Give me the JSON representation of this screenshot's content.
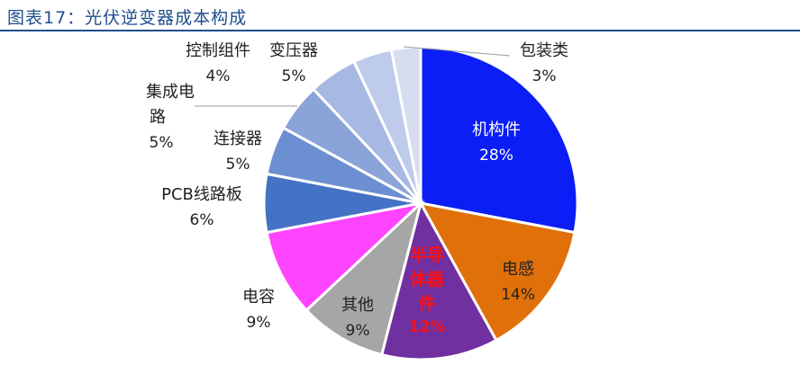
{
  "title": "图表17：光伏逆变器成本构成",
  "chart_data": {
    "type": "pie",
    "title": "图表17：光伏逆变器成本构成",
    "start_angle_deg": 0,
    "direction": "clockwise",
    "slices": [
      {
        "name": "机构件",
        "value": 28,
        "pct_label": "28%",
        "color": "#0a1ef5",
        "label_color": "#ffffff"
      },
      {
        "name": "电感",
        "value": 14,
        "pct_label": "14%",
        "color": "#e0700a",
        "label_color": "#222222"
      },
      {
        "name": "半导体器件",
        "value": 12,
        "pct_label": "12%",
        "color": "#7030a0",
        "label_color": "#ff1010"
      },
      {
        "name": "其他",
        "value": 9,
        "pct_label": "9%",
        "color": "#a6a6a6",
        "label_color": "#222222"
      },
      {
        "name": "电容",
        "value": 9,
        "pct_label": "9%",
        "color": "#ff44ff",
        "label_color": "#222222"
      },
      {
        "name": "PCB线路板",
        "value": 6,
        "pct_label": "6%",
        "color": "#4472c4",
        "label_color": "#222222"
      },
      {
        "name": "连接器",
        "value": 5,
        "pct_label": "5%",
        "color": "#6b8fd0",
        "label_color": "#222222"
      },
      {
        "name": "集成电路",
        "value": 5,
        "pct_label": "5%",
        "color": "#8aa3d9",
        "label_color": "#222222"
      },
      {
        "name": "变压器",
        "value": 5,
        "pct_label": "5%",
        "color": "#a7b8e3",
        "label_color": "#222222"
      },
      {
        "name": "控制组件",
        "value": 4,
        "pct_label": "4%",
        "color": "#bfcbeb",
        "label_color": "#222222"
      },
      {
        "name": "包装类",
        "value": 3,
        "pct_label": "3%",
        "color": "#d6ddf1",
        "label_color": "#222222"
      }
    ]
  }
}
